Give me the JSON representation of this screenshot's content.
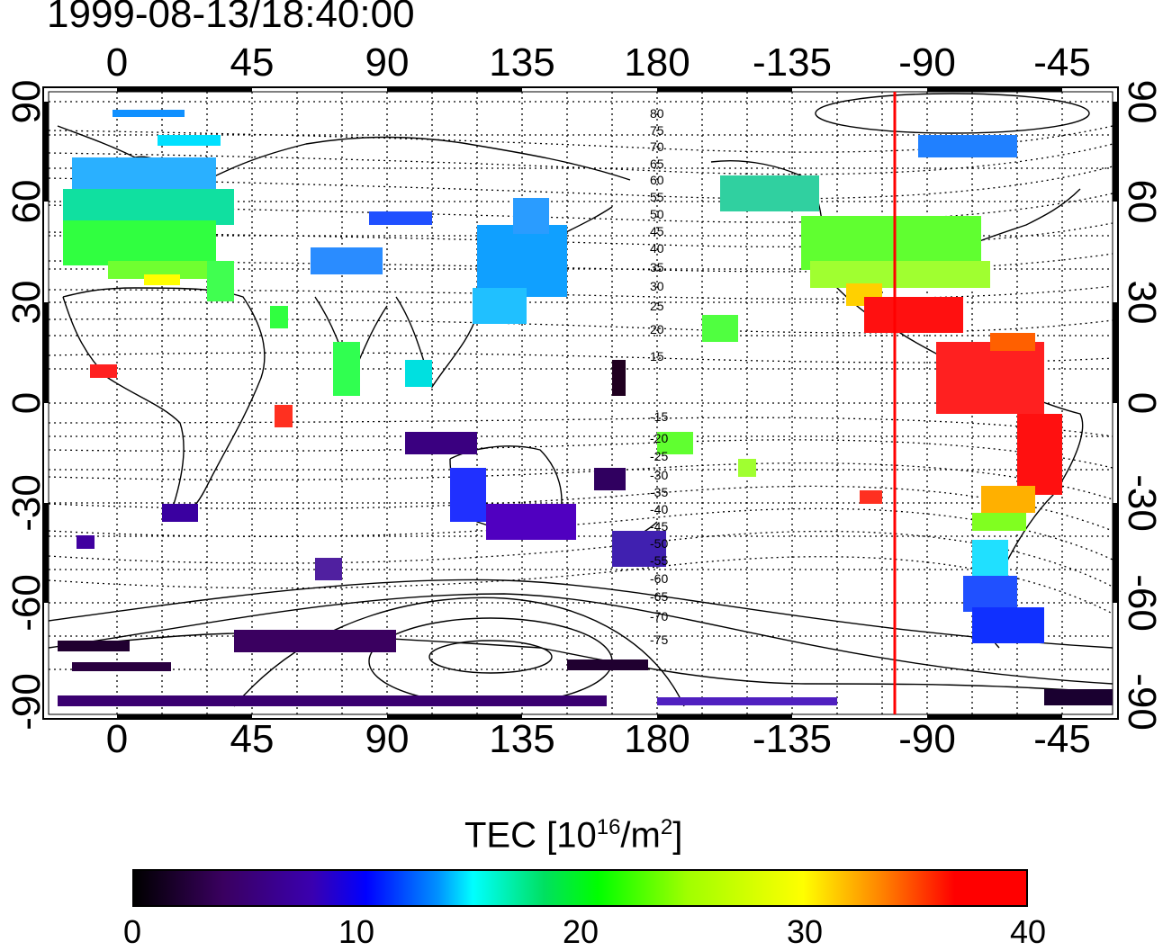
{
  "map": {
    "title": "1999-08-13/18:40:00",
    "lon_ticks": [
      "0",
      "45",
      "90",
      "135",
      "180",
      "-135",
      "-90",
      "-45"
    ],
    "lat_ticks": [
      "90",
      "60",
      "30",
      "0",
      "-30",
      "-60",
      "-90"
    ],
    "contour_labels": [
      "80",
      "75",
      "70",
      "65",
      "60",
      "55",
      "50",
      "45",
      "40",
      "35",
      "30",
      "25",
      "20",
      "15",
      "-15",
      "-20",
      "-25",
      "-30",
      "-35",
      "-40",
      "-45",
      "-50",
      "-55",
      "-60",
      "-65",
      "-70",
      "-75"
    ],
    "marker_color": "#ff0000"
  },
  "colorbar": {
    "title_text": "TEC  [10",
    "title_sup1": "16",
    "title_mid": "/m",
    "title_sup2": "2",
    "title_end": "]",
    "ticks": [
      "0",
      "10",
      "20",
      "30",
      "40"
    ],
    "range": [
      0,
      40
    ]
  },
  "colors": {
    "c0": "#000000",
    "c5": "#3a0060",
    "c10": "#0000ff",
    "c15": "#00ffff",
    "c20": "#00ff00",
    "c30": "#ffff00",
    "c40": "#ff0000"
  }
}
